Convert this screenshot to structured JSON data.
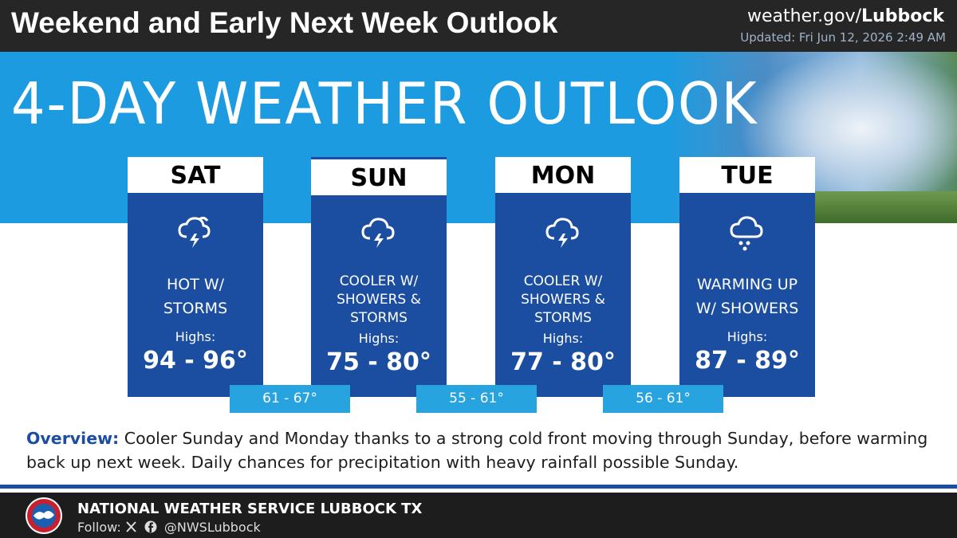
{
  "header": {
    "title": "Weekend and Early Next Week Outlook",
    "site_prefix": "weather.gov/",
    "site_name": "Lubbock",
    "updated": "Updated: Fri Jun 12, 2026 2:49 AM"
  },
  "banner": {
    "title": "4-DAY WEATHER OUTLOOK"
  },
  "days": [
    {
      "day": "SAT",
      "condition": [
        "HOT W/",
        "STORMS"
      ],
      "highs_label": "Highs:",
      "highs": "94 - 96°"
    },
    {
      "day": "SUN",
      "condition": [
        "COOLER W/",
        "SHOWERS &",
        "STORMS"
      ],
      "highs_label": "Highs:",
      "highs": "75 - 80°"
    },
    {
      "day": "MON",
      "condition": [
        "COOLER W/",
        "SHOWERS &",
        "STORMS"
      ],
      "highs_label": "Highs:",
      "highs": "77 - 80°"
    },
    {
      "day": "TUE",
      "condition": [
        "WARMING UP",
        "W/ SHOWERS"
      ],
      "highs_label": "Highs:",
      "highs": "87 - 89°"
    }
  ],
  "lows": [
    "61 - 67°",
    "55 - 61°",
    "56 - 61°"
  ],
  "overview": {
    "label": "Overview:",
    "text": "Cooler Sunday and Monday thanks to a strong cold front moving through Sunday, before warming back up next week. Daily chances for precipitation with heavy rainfall possible Sunday."
  },
  "footer": {
    "org": "NATIONAL WEATHER SERVICE LUBBOCK TX",
    "follow": "Follow:",
    "handle": "@NWSLubbock"
  }
}
